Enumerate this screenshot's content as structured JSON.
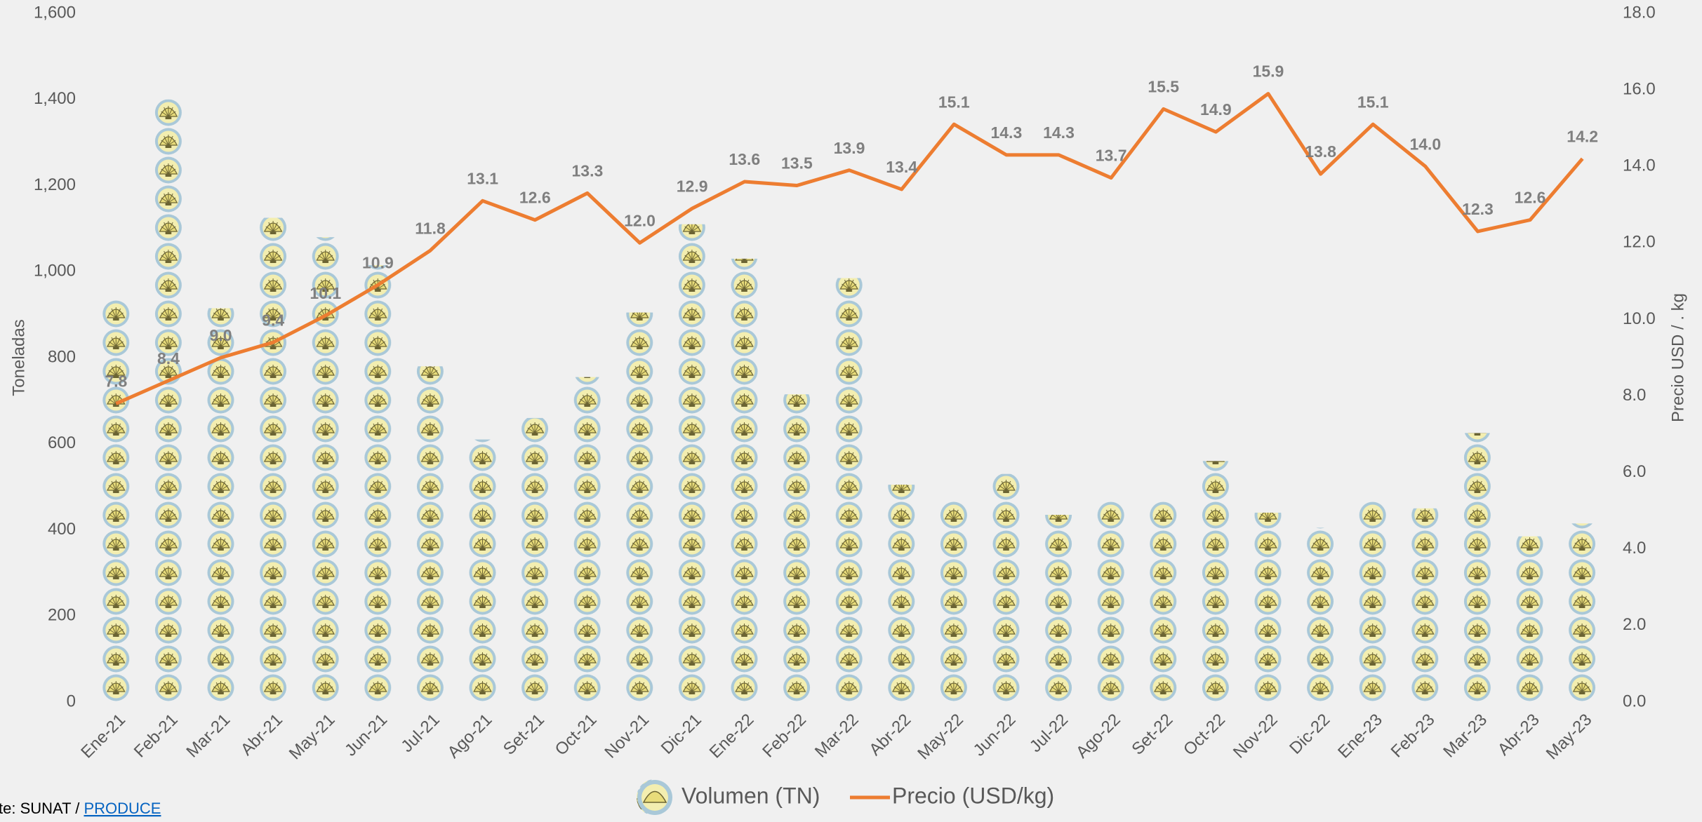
{
  "chart_data": {
    "type": "bar_line",
    "categories": [
      "Ene-21",
      "Feb-21",
      "Mar-21",
      "Abr-21",
      "May-21",
      "Jun-21",
      "Jul-21",
      "Ago-21",
      "Set-21",
      "Oct-21",
      "Nov-21",
      "Dic-21",
      "Ene-22",
      "Feb-22",
      "Mar-22",
      "Abr-22",
      "May-22",
      "Jun-22",
      "Jul-22",
      "Ago-22",
      "Set-22",
      "Oct-22",
      "Nov-22",
      "Dic-22",
      "Ene-23",
      "Feb-23",
      "Mar-23",
      "Abr-23",
      "May-23"
    ],
    "series": [
      {
        "name": "Volumen (TN)",
        "type": "bar",
        "color": "#a9c8d8",
        "axis": "y",
        "values": [
          935,
          1400,
          915,
          1125,
          1080,
          1015,
          780,
          610,
          660,
          755,
          905,
          1110,
          1030,
          715,
          985,
          505,
          470,
          530,
          435,
          465,
          465,
          560,
          440,
          405,
          465,
          450,
          625,
          385,
          415
        ]
      },
      {
        "name": "Precio (USD/kg)",
        "type": "line",
        "color": "#ed7d31",
        "axis": "y2",
        "values": [
          7.8,
          8.4,
          9.0,
          9.4,
          10.1,
          10.9,
          11.8,
          13.1,
          12.6,
          13.3,
          12.0,
          12.9,
          13.6,
          13.5,
          13.9,
          13.4,
          15.1,
          14.3,
          14.3,
          13.7,
          15.5,
          14.9,
          15.9,
          13.8,
          15.1,
          14.0,
          12.3,
          12.6,
          14.2
        ],
        "value_labels": [
          "7.8",
          "8.4",
          "9.0",
          "9.4",
          "10.1",
          "10.9",
          "11.8",
          "13.1",
          "12.6",
          "13.3",
          "12.0",
          "12.9",
          "13.6",
          "13.5",
          "13.9",
          "13.4",
          "15.1",
          "14.3",
          "14.3",
          "13.7",
          "15.5",
          "14.9",
          "15.9",
          "13.8",
          "15.1",
          "14.0",
          "12.3",
          "12.6",
          "14.2"
        ]
      }
    ],
    "y_label": "Toneladas",
    "y2_label": "Precio USD / . kg",
    "ylim": [
      0,
      1600
    ],
    "yticks": [
      0,
      200,
      400,
      600,
      800,
      {
        "value": 1000,
        "label": "1,000"
      },
      {
        "value": 1200,
        "label": "1,200"
      },
      {
        "value": 1400,
        "label": "1,400"
      },
      {
        "value": 1600,
        "label": "1,600"
      }
    ],
    "y2lim": [
      0,
      18
    ],
    "y2ticks": [
      {
        "value": 0,
        "label": "0.0"
      },
      {
        "value": 2,
        "label": "2.0"
      },
      {
        "value": 4,
        "label": "4.0"
      },
      {
        "value": 6,
        "label": "6.0"
      },
      {
        "value": 8,
        "label": "8.0"
      },
      {
        "value": 10,
        "label": "10.0"
      },
      {
        "value": 12,
        "label": "12.0"
      },
      {
        "value": 14,
        "label": "14.0"
      },
      {
        "value": 16,
        "label": "16.0"
      },
      {
        "value": 18,
        "label": "18.0"
      }
    ],
    "grid": false,
    "legend": "bottom",
    "source": "te: SUNAT / ",
    "source_link": "PRODUCE"
  }
}
